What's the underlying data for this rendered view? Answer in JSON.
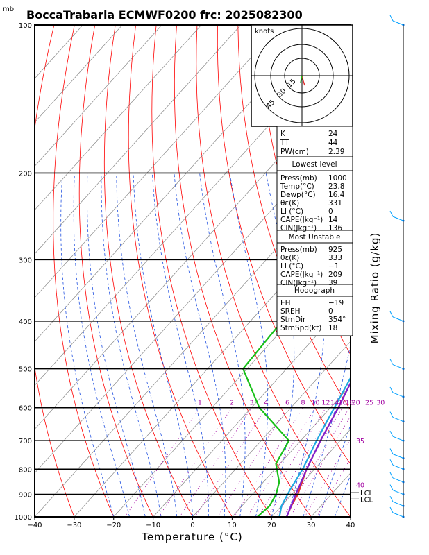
{
  "title": "BoccaTrabaria ECMWF0200 frc: 2025082300",
  "units_top": "mb",
  "chart_data": {
    "type": "line",
    "xlabel": "Temperature (°C)",
    "ylabel": "",
    "xlim": [
      -40,
      40
    ],
    "ylim": [
      1000,
      100
    ],
    "x_ticks": [
      "−40",
      "−30",
      "−20",
      "−10",
      "0",
      "10",
      "20",
      "30",
      "40"
    ],
    "y_ticks": [
      "100",
      "200",
      "300",
      "400",
      "500",
      "600",
      "700",
      "800",
      "900",
      "1000"
    ],
    "grid": true,
    "side_label": "Mixing Ratio (g/kg)",
    "series": [
      {
        "color": "#e03030",
        "points": [
          [
            100,
            11
          ],
          [
            200,
            0
          ],
          [
            250,
            -3
          ],
          [
            300,
            -1
          ],
          [
            400,
            4
          ],
          [
            500,
            8
          ],
          [
            600,
            12
          ],
          [
            700,
            15
          ],
          [
            800,
            18
          ],
          [
            900,
            21.5
          ],
          [
            950,
            22.5
          ],
          [
            1000,
            23.8
          ]
        ]
      },
      {
        "color": "#18c018",
        "points": [
          [
            100,
            -13
          ],
          [
            200,
            -16
          ],
          [
            300,
            -19
          ],
          [
            400,
            -22
          ],
          [
            500,
            -21
          ],
          [
            600,
            -8
          ],
          [
            700,
            7
          ],
          [
            780,
            9
          ],
          [
            850,
            14
          ],
          [
            900,
            16
          ],
          [
            950,
            17
          ],
          [
            1000,
            16.4
          ]
        ]
      },
      {
        "color": "#8020d0",
        "points": [
          [
            110,
            -27.5
          ],
          [
            200,
            -13
          ],
          [
            300,
            -1
          ],
          [
            400,
            4
          ],
          [
            500,
            8
          ],
          [
            600,
            12
          ],
          [
            700,
            15
          ],
          [
            800,
            18
          ],
          [
            900,
            21
          ],
          [
            1000,
            23.8
          ]
        ]
      },
      {
        "color": "#20a8e0",
        "points": [
          [
            115,
            -28
          ],
          [
            200,
            -15
          ],
          [
            300,
            -3
          ],
          [
            400,
            3
          ],
          [
            500,
            7.5
          ],
          [
            600,
            11
          ],
          [
            700,
            14
          ],
          [
            800,
            17
          ],
          [
            880,
            18.5
          ],
          [
            950,
            20
          ],
          [
            1000,
            22
          ]
        ]
      }
    ],
    "mixing_ratio_labels": [
      "1",
      "2",
      "3",
      "4",
      "6",
      "8",
      "10",
      "12",
      "14",
      "16",
      "18",
      "20",
      "25",
      "30"
    ],
    "right_annotations": [
      "35",
      "40",
      "LCL",
      "LCL"
    ]
  },
  "hodograph": {
    "units": "knots",
    "rings": [
      "15",
      "30",
      "45"
    ]
  },
  "indices": {
    "K_label": "K",
    "K_value": "24",
    "TT_label": "TT",
    "TT_value": "44",
    "PW_label": "PW(cm)",
    "PW_value": "2.39"
  },
  "lowest_level": {
    "header": "Lowest level",
    "rows": [
      {
        "label": "Press(mb)",
        "value": "1000"
      },
      {
        "label": "Temp(°C)",
        "value": "23.8"
      },
      {
        "label": "Dewp(°C)",
        "value": "16.4"
      },
      {
        "label": "θε(K)",
        "value": "331"
      },
      {
        "label": "LI (°C)",
        "value": "0"
      },
      {
        "label": "CAPE(Jkg⁻¹)",
        "value": "14"
      },
      {
        "label": "CIN(Jkg⁻¹)",
        "value": "136"
      }
    ]
  },
  "most_unstable": {
    "header": "Most Unstable",
    "rows": [
      {
        "label": "Press(mb)",
        "value": "925"
      },
      {
        "label": "θε(K)",
        "value": "333"
      },
      {
        "label": "LI (°C)",
        "value": "−1"
      },
      {
        "label": "CAPE(Jkg⁻¹)",
        "value": "209"
      },
      {
        "label": "CIN(Jkg⁻¹)",
        "value": "39"
      }
    ]
  },
  "hodograph_stats": {
    "header": "Hodograph",
    "rows": [
      {
        "label": "EH",
        "value": "−19"
      },
      {
        "label": "SREH",
        "value": "0"
      },
      {
        "label": "StmDir",
        "value": "354°"
      },
      {
        "label": "StmSpd(kt)",
        "value": "18"
      }
    ]
  },
  "colors": {
    "isotherm": "#ff2020",
    "dry_adiabat": "#ff0000",
    "moist_adiabat": "#2050e0",
    "mixing_ratio": "#a000a0",
    "wind_barbs": "#00a0ff"
  }
}
